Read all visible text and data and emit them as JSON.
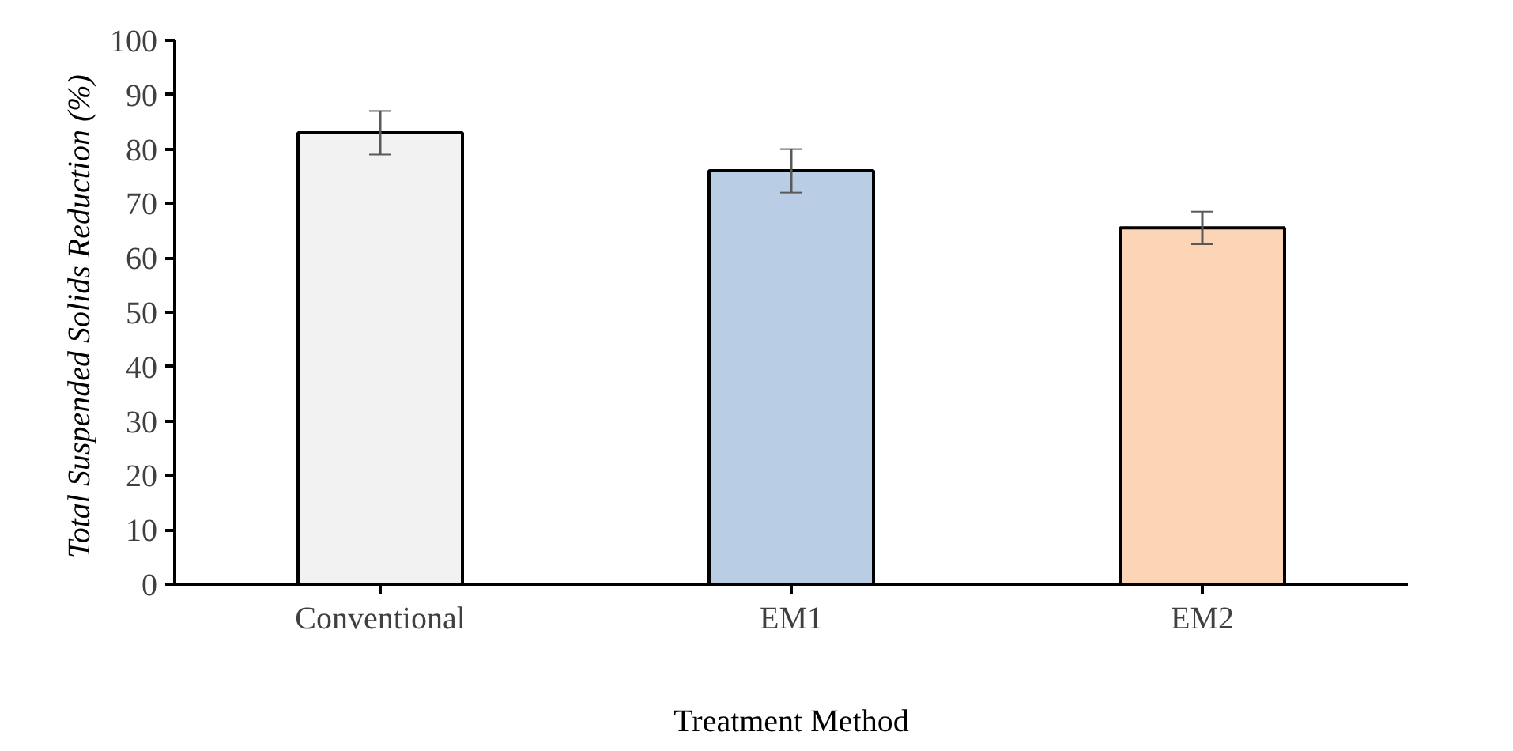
{
  "chart_data": {
    "type": "bar",
    "categories": [
      "Conventional",
      "EM1",
      "EM2"
    ],
    "values": [
      83,
      76,
      65.5
    ],
    "errors": [
      4,
      4,
      3
    ],
    "colors": [
      "#f2f2f2",
      "#b9cde4",
      "#fbd5b5"
    ],
    "xlabel": "Treatment Method",
    "ylabel": "Total Suspended Solids Reduction  (%)",
    "ylim": [
      0,
      100
    ],
    "yticks": [
      0,
      10,
      20,
      30,
      40,
      50,
      60,
      70,
      80,
      90,
      100
    ],
    "grid": false
  }
}
